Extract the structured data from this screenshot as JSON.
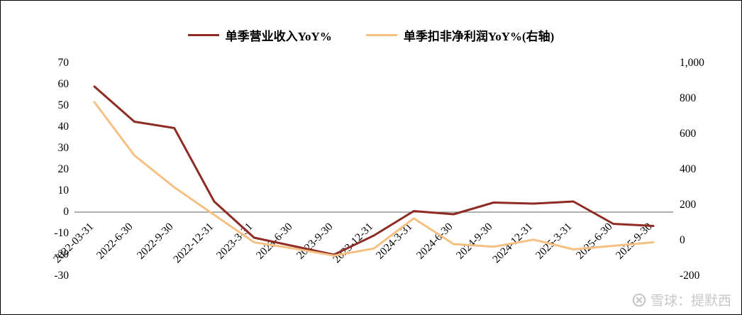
{
  "chart_data": {
    "type": "line",
    "title": "",
    "categories": [
      "2022-03-31",
      "2022-6-30",
      "2022-9-30",
      "2022-12-31",
      "2023-3-31",
      "2023-6-30",
      "2023-9-30",
      "2023-12-31",
      "2024-3-31",
      "2024-6-30",
      "2024-9-30",
      "2024-12-31",
      "2025-3-31",
      "2025-6-30",
      "2025-9-30"
    ],
    "series": [
      {
        "name": "单季营业收入YoY%",
        "axis": "left",
        "color": "#8e2b24",
        "values": [
          59,
          42.5,
          39.5,
          5,
          -12,
          -16,
          -20,
          -11,
          0.5,
          -1,
          4.5,
          4,
          5,
          -5.5,
          -6.5
        ]
      },
      {
        "name": "单季扣非净利润YoY%(右轴)",
        "axis": "right",
        "color": "#f7c083",
        "values": [
          780,
          480,
          300,
          145,
          -10,
          -45,
          -85,
          -45,
          125,
          -20,
          -35,
          5,
          -50,
          -30,
          -10
        ]
      }
    ],
    "left_axis": {
      "min": -30,
      "max": 70,
      "step": 10,
      "ticks": [
        "70",
        "60",
        "50",
        "40",
        "30",
        "20",
        "10",
        "0",
        "-10",
        "-20",
        "-30"
      ]
    },
    "right_axis": {
      "min": -200,
      "max": 1000,
      "step": 200,
      "ticks": [
        "1,000",
        "800",
        "600",
        "400",
        "200",
        "0",
        "-200"
      ]
    },
    "grid": "zero-line-only",
    "zero_line_color": "#808080",
    "legend_position": "top",
    "x_label_rotation_deg": -45
  },
  "watermark": {
    "text": "雪球：提默西",
    "icon": "xueqiu-logo"
  }
}
